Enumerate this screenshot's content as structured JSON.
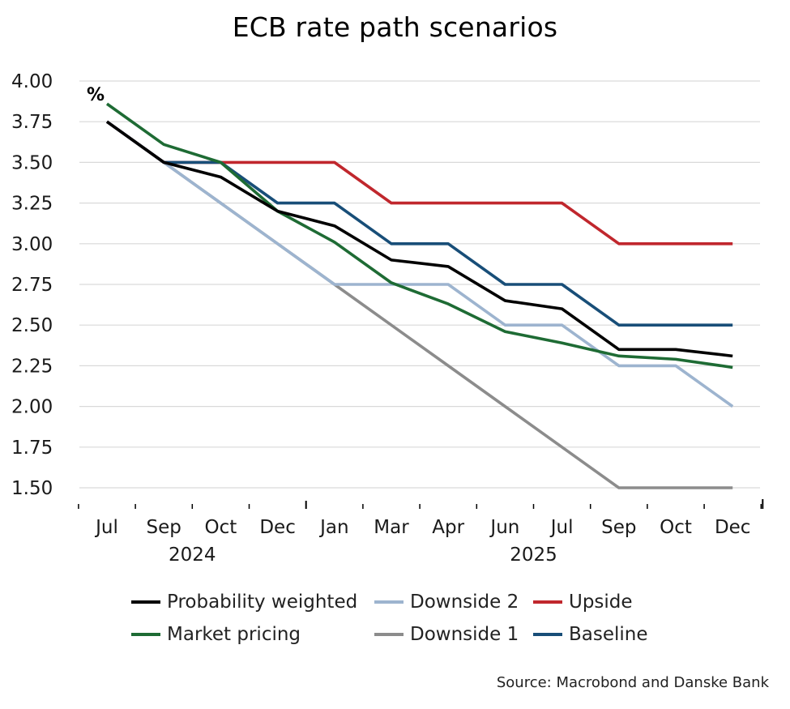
{
  "chart_data": {
    "type": "line",
    "title": "ECB rate path scenarios",
    "unit_label": "%",
    "source": "Source: Macrobond and Danske Bank",
    "categories": [
      "Jul",
      "Sep",
      "Oct",
      "Dec",
      "Jan",
      "Mar",
      "Apr",
      "Jun",
      "Jul",
      "Sep",
      "Oct",
      "Dec"
    ],
    "year_labels": [
      {
        "label": "2024",
        "category_index": 1.5
      },
      {
        "label": "2025",
        "category_index": 7.5
      }
    ],
    "yticks": [
      "4.00",
      "3.75",
      "3.50",
      "3.25",
      "3.00",
      "2.75",
      "2.50",
      "2.25",
      "2.00",
      "1.75",
      "1.50"
    ],
    "ylim": [
      1.5,
      4.0
    ],
    "grid": true,
    "legend_position": "bottom",
    "series": [
      {
        "name": "Probability weighted",
        "color": "#000000",
        "values": [
          3.75,
          3.5,
          3.41,
          3.2,
          3.11,
          2.9,
          2.86,
          2.65,
          2.6,
          2.35,
          2.35,
          2.31
        ]
      },
      {
        "name": "Downside 2",
        "color": "#9db4cf",
        "values": [
          3.75,
          3.5,
          3.25,
          3.0,
          2.75,
          2.75,
          2.75,
          2.5,
          2.5,
          2.25,
          2.25,
          2.0
        ]
      },
      {
        "name": "Upside",
        "color": "#c0272d",
        "values": [
          3.75,
          3.5,
          3.5,
          3.5,
          3.5,
          3.25,
          3.25,
          3.25,
          3.25,
          3.0,
          3.0,
          3.0
        ]
      },
      {
        "name": "Market pricing",
        "color": "#1e6b34",
        "values": [
          3.86,
          3.61,
          3.5,
          3.2,
          3.01,
          2.76,
          2.63,
          2.46,
          2.39,
          2.31,
          2.29,
          2.24
        ]
      },
      {
        "name": "Downside 1",
        "color": "#8c8c8c",
        "values": [
          3.75,
          3.5,
          3.25,
          3.0,
          2.75,
          2.5,
          2.25,
          2.0,
          1.75,
          1.5,
          1.5,
          1.5
        ]
      },
      {
        "name": "Baseline",
        "color": "#184e78",
        "values": [
          3.75,
          3.5,
          3.5,
          3.25,
          3.25,
          3.0,
          3.0,
          2.75,
          2.75,
          2.5,
          2.5,
          2.5
        ]
      }
    ],
    "draw_order": [
      "Downside 1",
      "Downside 2",
      "Upside",
      "Baseline",
      "Market pricing",
      "Probability weighted"
    ]
  }
}
